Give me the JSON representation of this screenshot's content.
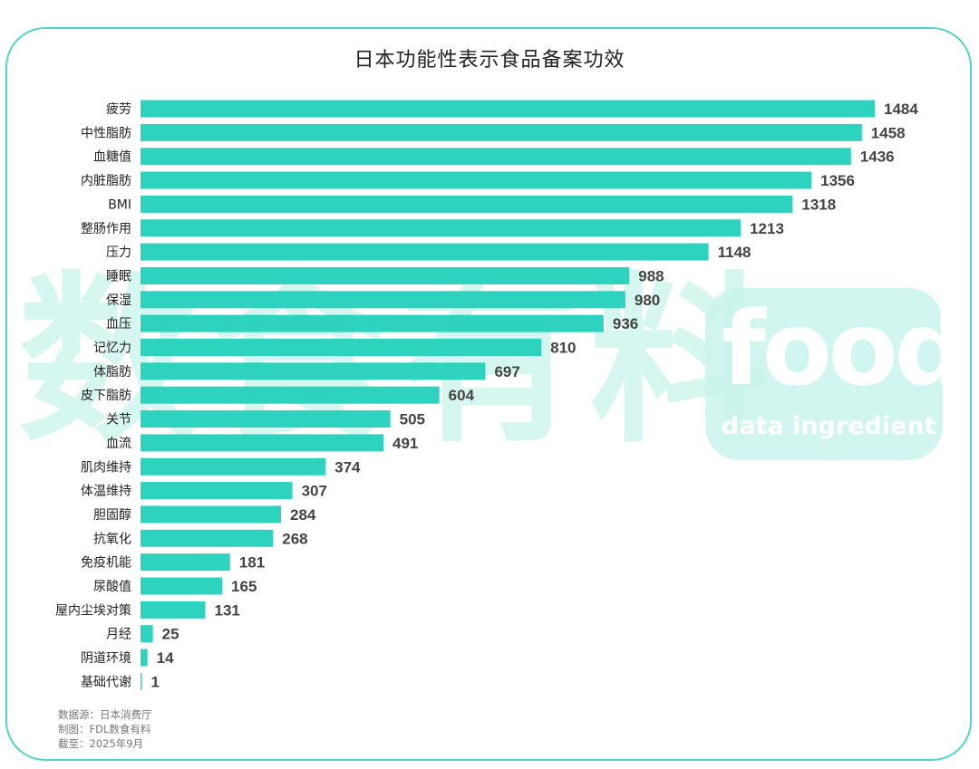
{
  "chart_data": {
    "type": "bar",
    "orientation": "horizontal",
    "title": "日本功能性表示食品备案功效",
    "categories": [
      "疲劳",
      "中性脂肪",
      "血糖值",
      "内脏脂肪",
      "BMI",
      "整肠作用",
      "压力",
      "睡眠",
      "保湿",
      "血压",
      "记忆力",
      "体脂肪",
      "皮下脂肪",
      "关节",
      "血流",
      "肌肉维持",
      "体温维持",
      "胆固醇",
      "抗氧化",
      "免疫机能",
      "尿酸值",
      "屋内尘埃对策",
      "月经",
      "阴道环境",
      "基础代谢"
    ],
    "values": [
      1484,
      1458,
      1436,
      1356,
      1318,
      1213,
      1148,
      988,
      980,
      936,
      810,
      697,
      604,
      505,
      491,
      374,
      307,
      284,
      268,
      181,
      165,
      131,
      25,
      14,
      1
    ],
    "xlim": [
      0,
      1500
    ],
    "grid": false,
    "legend": "none",
    "bar_color": "#2ed3c0",
    "label_color": "#444444"
  },
  "watermark": {
    "cn_text": "数食有料",
    "food_text": "food",
    "food_subtext": "data ingredient"
  },
  "source": {
    "line1": "数据源：日本消费厅",
    "line2": "制图：FDL数食有料",
    "line3": "截至：2025年9月"
  },
  "colors": {
    "frame": "#4fd6c8",
    "watermark": "#c9f3ec"
  }
}
